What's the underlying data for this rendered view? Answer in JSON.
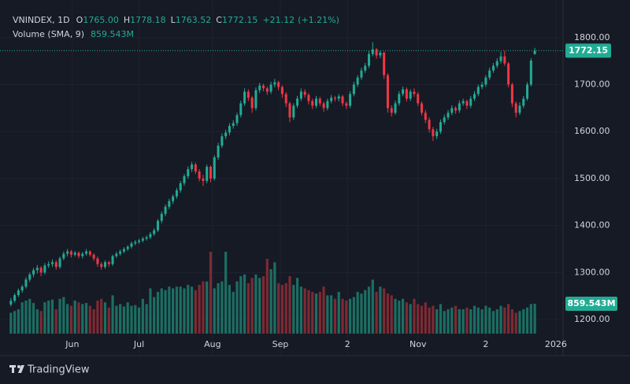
{
  "chart_data": {
    "type": "candlestick",
    "header": {
      "title": "VNINDEX, 1D",
      "fields": [
        {
          "key": "O",
          "label": "1765.00"
        },
        {
          "key": "H",
          "label": "1778.18"
        },
        {
          "key": "L",
          "label": "1763.52"
        },
        {
          "key": "C",
          "label": "1772.15"
        }
      ],
      "change": "+21.12",
      "change_percent": "(+1.21%)",
      "volume_title": "Volume (SMA, 9)"
    },
    "volume_label": "859.543M",
    "brand": "TradingView",
    "up_color": "#22ab94",
    "down_color": "#f23645",
    "volume_up_color": "#1b6f63",
    "volume_down_color": "#7e2a33",
    "grid": true,
    "ylim": [
      1170,
      1880
    ],
    "yticks": [
      {
        "value": 1200,
        "label": "1200.00"
      },
      {
        "value": 1300,
        "label": "1300.00"
      },
      {
        "value": 1400,
        "label": "1400.00"
      },
      {
        "value": 1500,
        "label": "1500.00"
      },
      {
        "value": 1600,
        "label": "1600.00"
      },
      {
        "value": 1700,
        "label": "1700.00"
      },
      {
        "value": 1800,
        "label": "1800.00"
      }
    ],
    "xlim": [
      -0.8,
      146.5
    ],
    "xticks": [
      {
        "value": 16.3,
        "label": "Jun"
      },
      {
        "value": 34,
        "label": "Jul"
      },
      {
        "value": 53.5,
        "label": "Aug"
      },
      {
        "value": 71.5,
        "label": "Sep"
      },
      {
        "value": 89.3,
        "label": "2"
      },
      {
        "value": 108,
        "label": "Nov"
      },
      {
        "value": 126,
        "label": "2"
      },
      {
        "value": 144.6,
        "label": "2026"
      }
    ],
    "ohlc": [
      [
        1232,
        1246,
        1228,
        1240
      ],
      [
        1240,
        1256,
        1236,
        1252
      ],
      [
        1252,
        1266,
        1248,
        1262
      ],
      [
        1262,
        1274,
        1257,
        1270
      ],
      [
        1270,
        1290,
        1266,
        1285
      ],
      [
        1285,
        1300,
        1280,
        1296
      ],
      [
        1296,
        1310,
        1290,
        1305
      ],
      [
        1305,
        1316,
        1298,
        1310
      ],
      [
        1310,
        1314,
        1292,
        1300
      ],
      [
        1300,
        1320,
        1296,
        1315
      ],
      [
        1315,
        1324,
        1310,
        1318
      ],
      [
        1318,
        1328,
        1312,
        1322
      ],
      [
        1322,
        1326,
        1306,
        1312
      ],
      [
        1312,
        1334,
        1308,
        1330
      ],
      [
        1330,
        1345,
        1326,
        1340
      ],
      [
        1340,
        1350,
        1334,
        1345
      ],
      [
        1345,
        1348,
        1332,
        1338
      ],
      [
        1338,
        1346,
        1334,
        1342
      ],
      [
        1342,
        1345,
        1330,
        1335
      ],
      [
        1335,
        1344,
        1330,
        1340
      ],
      [
        1340,
        1350,
        1336,
        1345
      ],
      [
        1345,
        1347,
        1334,
        1338
      ],
      [
        1338,
        1341,
        1325,
        1330
      ],
      [
        1330,
        1334,
        1312,
        1318
      ],
      [
        1318,
        1322,
        1306,
        1312
      ],
      [
        1312,
        1326,
        1308,
        1322
      ],
      [
        1322,
        1325,
        1312,
        1318
      ],
      [
        1318,
        1338,
        1314,
        1335
      ],
      [
        1335,
        1344,
        1331,
        1340
      ],
      [
        1340,
        1349,
        1336,
        1345
      ],
      [
        1345,
        1354,
        1341,
        1350
      ],
      [
        1350,
        1358,
        1346,
        1355
      ],
      [
        1355,
        1366,
        1351,
        1362
      ],
      [
        1362,
        1369,
        1358,
        1365
      ],
      [
        1365,
        1372,
        1361,
        1368
      ],
      [
        1368,
        1376,
        1364,
        1372
      ],
      [
        1372,
        1379,
        1368,
        1375
      ],
      [
        1375,
        1386,
        1371,
        1382
      ],
      [
        1382,
        1394,
        1378,
        1390
      ],
      [
        1390,
        1414,
        1386,
        1410
      ],
      [
        1410,
        1430,
        1405,
        1425
      ],
      [
        1425,
        1445,
        1420,
        1440
      ],
      [
        1440,
        1457,
        1435,
        1452
      ],
      [
        1452,
        1466,
        1446,
        1462
      ],
      [
        1462,
        1480,
        1457,
        1475
      ],
      [
        1475,
        1495,
        1470,
        1490
      ],
      [
        1490,
        1510,
        1485,
        1505
      ],
      [
        1505,
        1526,
        1500,
        1520
      ],
      [
        1520,
        1536,
        1514,
        1530
      ],
      [
        1530,
        1534,
        1510,
        1515
      ],
      [
        1515,
        1520,
        1494,
        1500
      ],
      [
        1500,
        1508,
        1484,
        1495
      ],
      [
        1495,
        1530,
        1490,
        1525
      ],
      [
        1525,
        1528,
        1492,
        1500
      ],
      [
        1500,
        1550,
        1496,
        1545
      ],
      [
        1545,
        1576,
        1540,
        1570
      ],
      [
        1570,
        1596,
        1565,
        1590
      ],
      [
        1590,
        1604,
        1584,
        1598
      ],
      [
        1598,
        1618,
        1592,
        1612
      ],
      [
        1612,
        1624,
        1606,
        1618
      ],
      [
        1618,
        1640,
        1612,
        1635
      ],
      [
        1635,
        1666,
        1630,
        1660
      ],
      [
        1660,
        1692,
        1655,
        1685
      ],
      [
        1685,
        1690,
        1665,
        1672
      ],
      [
        1672,
        1676,
        1640,
        1650
      ],
      [
        1650,
        1694,
        1645,
        1688
      ],
      [
        1688,
        1704,
        1682,
        1698
      ],
      [
        1698,
        1702,
        1686,
        1692
      ],
      [
        1692,
        1696,
        1678,
        1685
      ],
      [
        1685,
        1706,
        1680,
        1700
      ],
      [
        1700,
        1712,
        1694,
        1705
      ],
      [
        1705,
        1708,
        1688,
        1695
      ],
      [
        1695,
        1698,
        1672,
        1680
      ],
      [
        1680,
        1684,
        1652,
        1660
      ],
      [
        1660,
        1664,
        1620,
        1630
      ],
      [
        1630,
        1660,
        1625,
        1655
      ],
      [
        1655,
        1676,
        1650,
        1670
      ],
      [
        1670,
        1692,
        1665,
        1685
      ],
      [
        1685,
        1690,
        1672,
        1678
      ],
      [
        1678,
        1682,
        1658,
        1665
      ],
      [
        1665,
        1670,
        1648,
        1655
      ],
      [
        1655,
        1676,
        1650,
        1670
      ],
      [
        1670,
        1674,
        1654,
        1660
      ],
      [
        1660,
        1664,
        1642,
        1650
      ],
      [
        1650,
        1670,
        1645,
        1665
      ],
      [
        1665,
        1678,
        1660,
        1672
      ],
      [
        1672,
        1676,
        1664,
        1670
      ],
      [
        1670,
        1680,
        1664,
        1675
      ],
      [
        1675,
        1678,
        1654,
        1660
      ],
      [
        1660,
        1664,
        1648,
        1655
      ],
      [
        1655,
        1686,
        1650,
        1680
      ],
      [
        1680,
        1706,
        1675,
        1700
      ],
      [
        1700,
        1720,
        1695,
        1715
      ],
      [
        1715,
        1736,
        1710,
        1730
      ],
      [
        1730,
        1746,
        1725,
        1740
      ],
      [
        1740,
        1772,
        1735,
        1765
      ],
      [
        1765,
        1790,
        1760,
        1775
      ],
      [
        1775,
        1778,
        1755,
        1762
      ],
      [
        1762,
        1772,
        1756,
        1768
      ],
      [
        1768,
        1770,
        1712,
        1720
      ],
      [
        1720,
        1724,
        1640,
        1650
      ],
      [
        1650,
        1656,
        1632,
        1640
      ],
      [
        1640,
        1666,
        1636,
        1660
      ],
      [
        1660,
        1686,
        1655,
        1680
      ],
      [
        1680,
        1696,
        1675,
        1690
      ],
      [
        1690,
        1694,
        1664,
        1670
      ],
      [
        1670,
        1690,
        1665,
        1685
      ],
      [
        1685,
        1692,
        1674,
        1680
      ],
      [
        1680,
        1684,
        1654,
        1660
      ],
      [
        1660,
        1664,
        1634,
        1640
      ],
      [
        1640,
        1646,
        1618,
        1625
      ],
      [
        1625,
        1630,
        1598,
        1605
      ],
      [
        1605,
        1610,
        1580,
        1590
      ],
      [
        1590,
        1606,
        1584,
        1600
      ],
      [
        1600,
        1626,
        1595,
        1620
      ],
      [
        1620,
        1636,
        1615,
        1630
      ],
      [
        1630,
        1646,
        1625,
        1640
      ],
      [
        1640,
        1656,
        1635,
        1650
      ],
      [
        1650,
        1654,
        1638,
        1645
      ],
      [
        1645,
        1666,
        1640,
        1660
      ],
      [
        1660,
        1670,
        1655,
        1665
      ],
      [
        1665,
        1668,
        1648,
        1655
      ],
      [
        1655,
        1676,
        1650,
        1670
      ],
      [
        1670,
        1686,
        1665,
        1680
      ],
      [
        1680,
        1700,
        1675,
        1695
      ],
      [
        1695,
        1706,
        1690,
        1700
      ],
      [
        1700,
        1720,
        1695,
        1715
      ],
      [
        1715,
        1736,
        1710,
        1730
      ],
      [
        1730,
        1746,
        1725,
        1740
      ],
      [
        1740,
        1756,
        1735,
        1750
      ],
      [
        1750,
        1770,
        1745,
        1760
      ],
      [
        1760,
        1772,
        1740,
        1745
      ],
      [
        1745,
        1748,
        1694,
        1700
      ],
      [
        1700,
        1704,
        1652,
        1660
      ],
      [
        1660,
        1664,
        1630,
        1640
      ],
      [
        1640,
        1662,
        1635,
        1655
      ],
      [
        1655,
        1676,
        1650,
        1670
      ],
      [
        1670,
        1705,
        1666,
        1700
      ],
      [
        1700,
        1756,
        1696,
        1751.03
      ],
      [
        1765,
        1778.18,
        1763.52,
        1772.15
      ]
    ],
    "volume": [
      600,
      650,
      700,
      900,
      950,
      1000,
      880,
      700,
      650,
      900,
      950,
      980,
      700,
      1000,
      1050,
      850,
      800,
      950,
      900,
      850,
      880,
      800,
      700,
      950,
      1000,
      900,
      750,
      1100,
      800,
      850,
      780,
      900,
      800,
      820,
      750,
      1000,
      850,
      1300,
      1050,
      1200,
      1300,
      1250,
      1350,
      1300,
      1350,
      1350,
      1300,
      1400,
      1350,
      1250,
      1400,
      1500,
      1500,
      2350,
      1300,
      1450,
      1500,
      2350,
      1400,
      1200,
      1500,
      1650,
      1700,
      1450,
      1600,
      1700,
      1600,
      1650,
      2150,
      1850,
      2050,
      1450,
      1400,
      1450,
      1650,
      1400,
      1600,
      1350,
      1300,
      1250,
      1200,
      1150,
      1200,
      1350,
      1100,
      1100,
      1000,
      1200,
      1000,
      950,
      1000,
      1050,
      1200,
      1150,
      1250,
      1350,
      1550,
      1200,
      1350,
      1300,
      1150,
      1100,
      1000,
      950,
      1000,
      900,
      850,
      1000,
      850,
      800,
      900,
      750,
      800,
      700,
      850,
      650,
      700,
      750,
      800,
      700,
      700,
      750,
      700,
      800,
      750,
      700,
      800,
      750,
      650,
      700,
      800,
      750,
      850,
      700,
      600,
      650,
      700,
      750,
      850,
      859.543
    ]
  }
}
